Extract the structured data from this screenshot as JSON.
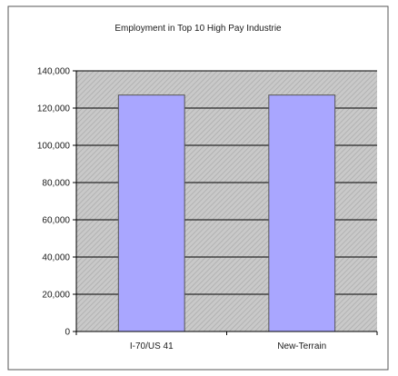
{
  "chart_data": {
    "type": "bar",
    "title": "Employment in Top 10 High Pay Industrie",
    "categories": [
      "I-70/US 41",
      "New-Terrain"
    ],
    "values": [
      127000,
      127000
    ],
    "ylim": [
      0,
      140000
    ],
    "yticks": [
      0,
      20000,
      40000,
      60000,
      80000,
      100000,
      120000,
      140000
    ],
    "ytick_labels": [
      "0",
      "20,000",
      "40,000",
      "60,000",
      "80,000",
      "100,000",
      "120,000",
      "140,000"
    ],
    "xlabel": "",
    "ylabel": "",
    "grid": true,
    "legend": false,
    "bar_color": "#a9a6ff",
    "plot_background": "#c8c8c8"
  }
}
